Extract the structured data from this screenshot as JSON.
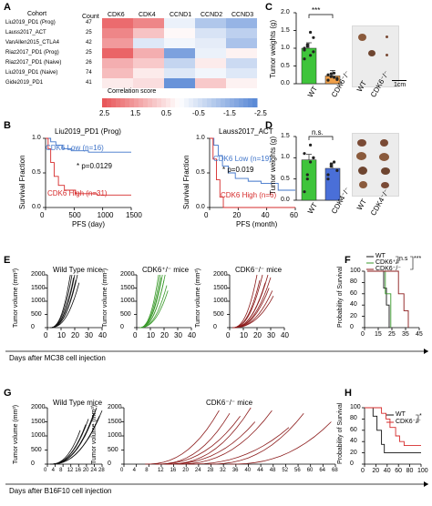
{
  "panels": {
    "A": "A",
    "B": "B",
    "C": "C",
    "D": "D",
    "E": "E",
    "F": "F",
    "G": "G",
    "H": "H"
  },
  "panelA": {
    "cohort_header": "Cohort",
    "count_header": "Count",
    "genes": [
      "CDK6",
      "CDK4",
      "CCND1",
      "CCND2",
      "CCND3"
    ],
    "cohorts": [
      "Liu2019_PD1 (Prog)",
      "Lauss2017_ACT",
      "VanAllen2015_CTLA4",
      "Riaz2017_PD1 (Prog)",
      "Riaz2017_PD1 (Naive)",
      "Liu2019_PD1 (Naive)",
      "Gide2019_PD1"
    ],
    "counts": [
      "47",
      "25",
      "42",
      "25",
      "26",
      "74",
      "41"
    ],
    "scores": [
      [
        2.2,
        1.8,
        -0.3,
        -1.2,
        -1.6
      ],
      [
        1.8,
        0.9,
        0.1,
        -0.6,
        -1.0
      ],
      [
        1.5,
        -0.5,
        -0.2,
        -0.4,
        -1.3
      ],
      [
        2.3,
        1.2,
        -2.0,
        -0.3,
        0.2
      ],
      [
        1.2,
        0.8,
        -0.9,
        0.3,
        -0.8
      ],
      [
        1.0,
        0.3,
        -0.5,
        -0.2,
        -0.5
      ],
      [
        0.3,
        0.5,
        -2.3,
        0.8,
        0.2
      ]
    ],
    "colorbar_label": "Correlation score",
    "colorbar_ticks": [
      "2.5",
      "1.5",
      "0.5",
      "-0.5",
      "-1.5",
      "-2.5"
    ],
    "colors": {
      "pos": "#e8575a",
      "neg": "#5b8ad6",
      "mid": "#ffffff"
    }
  },
  "panelB": {
    "left": {
      "title": "Liu2019_PD1 (Prog)",
      "ylabel": "Survival Fraction",
      "xlabel": "PFS (day)",
      "yticks": [
        "1.0",
        "0.5",
        "0.0"
      ],
      "xticks": [
        "0",
        "500",
        "1000",
        "1500"
      ],
      "low_label": "CDK6 Low (n=16)",
      "high_label": "CDK6 High (n=31)",
      "p_label": "* p=0.0129"
    },
    "right": {
      "title": "Lauss2017_ACT",
      "ylabel": "Survival Fraction",
      "xlabel": "PFS (month)",
      "yticks": [
        "1.0",
        "0.5",
        "0.0"
      ],
      "xticks": [
        "0",
        "20",
        "40",
        "60"
      ],
      "low_label": "CDK6 Low (n=19)",
      "high_label": "CDK6 High (n=6)",
      "p_label": "* p=0.019"
    },
    "colors": {
      "low": "#3f74c9",
      "high": "#d62b2b"
    }
  },
  "panelC": {
    "ylabel": "Tumor weights (g)",
    "yticks": [
      "0.0",
      "0.5",
      "1.0",
      "1.5",
      "2.0"
    ],
    "ylim": [
      0,
      2
    ],
    "bars": [
      {
        "label": "WT",
        "value": 1.0,
        "color": "#3ec43b",
        "points": [
          0.95,
          1.05,
          0.8,
          1.3,
          0.7,
          1.1,
          1.45,
          0.9,
          1.0
        ]
      },
      {
        "label": "CDK6⁻/⁻",
        "value": 0.22,
        "color": "#f0a04a",
        "points": [
          0.1,
          0.2,
          0.3,
          0.15,
          0.25,
          0.28,
          0.18,
          0.12
        ]
      }
    ],
    "sig": "***",
    "photo_labels": [
      "WT",
      "CDK6⁻/⁻"
    ],
    "scale_label": "1cm"
  },
  "panelD": {
    "ylabel": "Tumor weights (g)",
    "yticks": [
      "0.0",
      "0.5",
      "1.0",
      "1.5"
    ],
    "ylim": [
      0,
      1.5
    ],
    "bars": [
      {
        "label": "WT",
        "value": 0.95,
        "color": "#3ec43b",
        "points": [
          0.2,
          0.6,
          0.9,
          1.0,
          1.1,
          0.5,
          1.3,
          1.0
        ]
      },
      {
        "label": "CDK4⁻/⁻",
        "value": 0.75,
        "color": "#4a6fd8",
        "points": [
          0.5,
          0.8,
          0.9,
          0.7,
          0.6,
          0.85
        ]
      }
    ],
    "sig": "n.s.",
    "photo_labels": [
      "WT",
      "CDK4⁻/⁻"
    ]
  },
  "panelE": {
    "ylabel": "Tumor volume (mm³)",
    "yticks": [
      "0",
      "500",
      "1000",
      "1500",
      "2000"
    ],
    "xticks": [
      "0",
      "10",
      "20",
      "30",
      "40"
    ],
    "titles": [
      "Wild Type mice",
      "CDK6⁺/⁻ mice",
      "CDK6⁻/⁻ mice"
    ],
    "colors": [
      "#111111",
      "#3a9a2b",
      "#8b1a1a"
    ],
    "xlabel": "Days after MC38 cell injection"
  },
  "panelF": {
    "ylabel": "Probability of Survival",
    "yticks": [
      "0",
      "20",
      "40",
      "60",
      "80",
      "100"
    ],
    "xticks": [
      "0",
      "15",
      "25",
      "35",
      "45"
    ],
    "legend": [
      "WT",
      "CDK6⁺/⁻",
      "CDK6⁻/⁻"
    ],
    "colors": [
      "#111111",
      "#3a9a2b",
      "#8b1a1a"
    ],
    "sig_ns": "n.s",
    "sig_star": "***"
  },
  "panelG": {
    "ylabel": "Tumor volume (mm³)",
    "yticks": [
      "0",
      "500",
      "1000",
      "1500",
      "2000"
    ],
    "left_title": "Wild Type mice",
    "right_title": "CDK6⁻/⁻ mice",
    "left_xticks": [
      "0",
      "4",
      "8",
      "12",
      "16",
      "20",
      "24",
      "28"
    ],
    "right_xticks": [
      "0",
      "4",
      "8",
      "12",
      "16",
      "20",
      "24",
      "28",
      "32",
      "36",
      "40",
      "44",
      "48",
      "52",
      "56",
      "60",
      "64",
      "68"
    ],
    "xlabel": "Days after B16F10 cell injection",
    "colors": [
      "#111111",
      "#8b1a1a"
    ]
  },
  "panelH": {
    "ylabel": "Probability of Survival",
    "yticks": [
      "0",
      "20",
      "40",
      "60",
      "80",
      "100"
    ],
    "xticks": [
      "0",
      "20",
      "40",
      "60",
      "80",
      "100"
    ],
    "legend": [
      "WT",
      "CDK6⁻/⁻"
    ],
    "colors": [
      "#111111",
      "#d62b2b"
    ],
    "sig": "*"
  }
}
